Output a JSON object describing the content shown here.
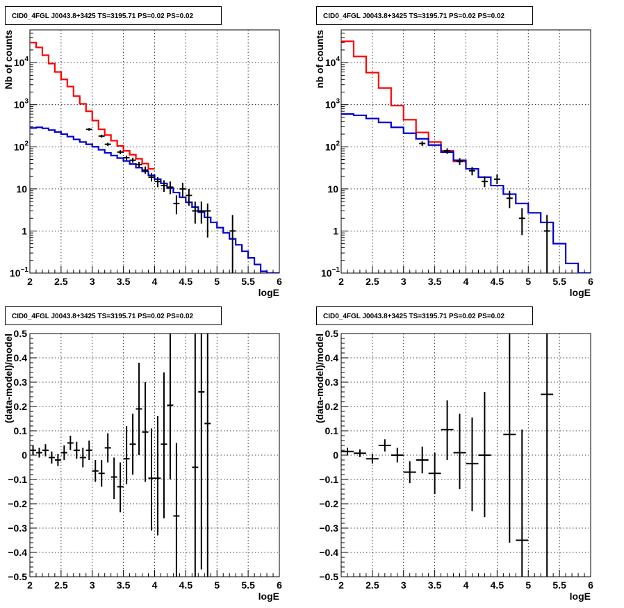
{
  "colors": {
    "data": "#000000",
    "total_model": "#ff0000",
    "source_model": "#0000cc",
    "grid": "#000000",
    "frame": "#000000"
  },
  "chart_data": [
    {
      "id": "tl",
      "type": "histogram",
      "title": "CID0_4FGL J0043.8+3425 TS=3195.71 PS=0.02 PS=0.02",
      "xlabel": "logE",
      "ylabel": "Nb of counts",
      "xlim": [
        2,
        6
      ],
      "ylim": [
        0.1,
        60000
      ],
      "ylog": true,
      "grid": true,
      "xticks": [
        {
          "v": 2,
          "label": "2"
        },
        {
          "v": 2.5,
          "label": "2.5"
        },
        {
          "v": 3,
          "label": "3"
        },
        {
          "v": 3.5,
          "label": "3.5"
        },
        {
          "v": 4,
          "label": "4"
        },
        {
          "v": 4.5,
          "label": "4.5"
        },
        {
          "v": 5,
          "label": "5"
        },
        {
          "v": 5.5,
          "label": "5.5"
        },
        {
          "v": 6,
          "label": "6"
        }
      ],
      "yticks": [
        {
          "v": 0.1,
          "label": "10",
          "sup": "−1"
        },
        {
          "v": 1,
          "label": "1"
        },
        {
          "v": 10,
          "label": "10"
        },
        {
          "v": 100,
          "label": "10",
          "sup": "2"
        },
        {
          "v": 1000,
          "label": "10",
          "sup": "3"
        },
        {
          "v": 10000,
          "label": "10",
          "sup": "4"
        }
      ],
      "series": [
        {
          "role": "total_model",
          "edges": [
            2.0,
            2.1,
            2.2,
            2.3,
            2.4,
            2.5,
            2.6,
            2.7,
            2.8,
            2.9,
            3.0,
            3.1,
            3.2,
            3.3,
            3.4,
            3.5,
            3.6,
            3.7,
            3.8,
            3.9,
            4.0
          ],
          "values": [
            30000,
            23000,
            15000,
            9500,
            6000,
            4000,
            2700,
            1600,
            1050,
            700,
            420,
            260,
            190,
            140,
            105,
            80,
            65,
            52,
            40,
            30
          ]
        },
        {
          "role": "source_model",
          "edges": [
            2.0,
            2.1,
            2.2,
            2.3,
            2.4,
            2.5,
            2.6,
            2.7,
            2.8,
            2.9,
            3.0,
            3.1,
            3.2,
            3.3,
            3.4,
            3.5,
            3.6,
            3.7,
            3.8,
            3.9,
            4.0,
            4.1,
            4.2,
            4.3,
            4.4,
            4.5,
            4.6,
            4.7,
            4.8,
            4.9,
            5.0,
            5.1,
            5.2,
            5.3,
            5.4,
            5.5,
            5.6,
            5.7,
            5.8,
            5.9,
            6.0
          ],
          "values": [
            280,
            290,
            275,
            250,
            225,
            200,
            175,
            150,
            130,
            115,
            100,
            85,
            72,
            62,
            54,
            46,
            39,
            32,
            26,
            21,
            17,
            13.5,
            10.5,
            8.2,
            6.3,
            4.8,
            3.7,
            2.8,
            2.1,
            1.6,
            1.2,
            0.9,
            0.65,
            0.47,
            0.33,
            0.23,
            0.16,
            0.11,
            0.09,
            0.09
          ]
        }
      ],
      "points": [
        {
          "x": 2.95,
          "y": 260,
          "lo": 240,
          "hi": 280
        },
        {
          "x": 3.15,
          "y": 180,
          "lo": 165,
          "hi": 195
        },
        {
          "x": 3.25,
          "y": 115,
          "lo": 105,
          "hi": 125
        },
        {
          "x": 3.45,
          "y": 75,
          "lo": 67,
          "hi": 83
        },
        {
          "x": 3.55,
          "y": 55,
          "lo": 48,
          "hi": 62
        },
        {
          "x": 3.65,
          "y": 48,
          "lo": 42,
          "hi": 55
        },
        {
          "x": 3.75,
          "y": 38,
          "lo": 32,
          "hi": 44
        },
        {
          "x": 3.85,
          "y": 28,
          "lo": 23,
          "hi": 34
        },
        {
          "x": 3.95,
          "y": 19,
          "lo": 15,
          "hi": 24
        },
        {
          "x": 4.05,
          "y": 15,
          "lo": 11,
          "hi": 19
        },
        {
          "x": 4.15,
          "y": 12,
          "lo": 8.5,
          "hi": 16
        },
        {
          "x": 4.25,
          "y": 11,
          "lo": 7.5,
          "hi": 15
        },
        {
          "x": 4.35,
          "y": 4.5,
          "lo": 2.5,
          "hi": 7
        },
        {
          "x": 4.45,
          "y": 10,
          "lo": 6.5,
          "hi": 14
        },
        {
          "x": 4.55,
          "y": 7,
          "lo": 4,
          "hi": 10
        },
        {
          "x": 4.65,
          "y": 3,
          "lo": 1.5,
          "hi": 5
        },
        {
          "x": 4.75,
          "y": 3,
          "lo": 1.5,
          "hi": 5
        },
        {
          "x": 4.85,
          "y": 3,
          "lo": 0.7,
          "hi": 4.5
        },
        {
          "x": 5.25,
          "y": 1,
          "lo": 0.1,
          "hi": 2.4
        }
      ]
    },
    {
      "id": "tr",
      "type": "histogram",
      "title": "CID0_4FGL J0043.8+3425 TS=3195.71 PS=0.02 PS=0.02",
      "xlabel": "logE",
      "ylabel": "nb of counts",
      "xlim": [
        2,
        6
      ],
      "ylim": [
        0.1,
        60000
      ],
      "ylog": true,
      "grid": true,
      "xticks": [
        {
          "v": 2,
          "label": "2"
        },
        {
          "v": 2.5,
          "label": "2.5"
        },
        {
          "v": 3,
          "label": "3"
        },
        {
          "v": 3.5,
          "label": "3.5"
        },
        {
          "v": 4,
          "label": "4"
        },
        {
          "v": 4.5,
          "label": "4.5"
        },
        {
          "v": 5,
          "label": "5"
        },
        {
          "v": 5.5,
          "label": "5.5"
        },
        {
          "v": 6,
          "label": "6"
        }
      ],
      "yticks": [
        {
          "v": 0.1,
          "label": "10",
          "sup": "−1"
        },
        {
          "v": 1,
          "label": "1"
        },
        {
          "v": 10,
          "label": "10"
        },
        {
          "v": 100,
          "label": "10",
          "sup": "2"
        },
        {
          "v": 1000,
          "label": "10",
          "sup": "3"
        },
        {
          "v": 10000,
          "label": "10",
          "sup": "4"
        }
      ],
      "series": [
        {
          "role": "total_model",
          "edges": [
            2.0,
            2.2,
            2.4,
            2.6,
            2.8,
            3.0,
            3.2,
            3.4,
            3.6,
            3.8,
            4.0
          ],
          "values": [
            32000,
            14000,
            5800,
            2500,
            950,
            440,
            220,
            130,
            80,
            45
          ]
        },
        {
          "role": "source_model",
          "edges": [
            2.0,
            2.2,
            2.4,
            2.6,
            2.8,
            3.0,
            3.2,
            3.4,
            3.6,
            3.8,
            4.0,
            4.2,
            4.4,
            4.6,
            4.8,
            5.0,
            5.2,
            5.4,
            5.6,
            5.8,
            6.0
          ],
          "values": [
            600,
            560,
            470,
            380,
            290,
            210,
            155,
            110,
            75,
            48,
            30,
            19,
            12,
            7.5,
            4.5,
            2.7,
            1.6,
            0.5,
            0.17,
            0.1
          ]
        }
      ],
      "points": [
        {
          "x": 3.3,
          "y": 120,
          "lo": 105,
          "hi": 135
        },
        {
          "x": 3.7,
          "y": 80,
          "lo": 68,
          "hi": 92
        },
        {
          "x": 3.9,
          "y": 45,
          "lo": 37,
          "hi": 54
        },
        {
          "x": 4.1,
          "y": 27,
          "lo": 21,
          "hi": 33
        },
        {
          "x": 4.3,
          "y": 15,
          "lo": 11,
          "hi": 20
        },
        {
          "x": 4.5,
          "y": 17,
          "lo": 13,
          "hi": 22
        },
        {
          "x": 4.7,
          "y": 6,
          "lo": 3.5,
          "hi": 9
        },
        {
          "x": 4.9,
          "y": 2,
          "lo": 0.8,
          "hi": 3.5
        },
        {
          "x": 5.3,
          "y": 1,
          "lo": 0.1,
          "hi": 2.4
        }
      ]
    },
    {
      "id": "bl",
      "type": "scatter",
      "title": "CID0_4FGL J0043.8+3425 TS=3195.71 PS=0.02 PS=0.02",
      "xlabel": "logE",
      "ylabel": "(data-model)/model",
      "xlim": [
        2,
        6
      ],
      "ylim": [
        -0.5,
        0.5
      ],
      "ylog": false,
      "grid": true,
      "xticks": [
        {
          "v": 2,
          "label": "2"
        },
        {
          "v": 2.5,
          "label": "2.5"
        },
        {
          "v": 3,
          "label": "3"
        },
        {
          "v": 3.5,
          "label": "3.5"
        },
        {
          "v": 4,
          "label": "4"
        },
        {
          "v": 4.5,
          "label": "4.5"
        },
        {
          "v": 5,
          "label": "5"
        },
        {
          "v": 5.5,
          "label": "5.5"
        },
        {
          "v": 6,
          "label": "6"
        }
      ],
      "yticks": [
        {
          "v": -0.5,
          "label": "−0.5"
        },
        {
          "v": -0.4,
          "label": "−0.4"
        },
        {
          "v": -0.3,
          "label": "−0.3"
        },
        {
          "v": -0.2,
          "label": "−0.2"
        },
        {
          "v": -0.1,
          "label": "−0.1"
        },
        {
          "v": 0,
          "label": "0"
        },
        {
          "v": 0.1,
          "label": "0.1"
        },
        {
          "v": 0.2,
          "label": "0.2"
        },
        {
          "v": 0.3,
          "label": "0.3"
        },
        {
          "v": 0.4,
          "label": "0.4"
        },
        {
          "v": 0.5,
          "label": "0.5"
        }
      ],
      "series": [],
      "xerr": 0.05,
      "points": [
        {
          "x": 2.05,
          "y": 0.02,
          "lo": 0.0,
          "hi": 0.04
        },
        {
          "x": 2.15,
          "y": 0.01,
          "lo": -0.01,
          "hi": 0.03
        },
        {
          "x": 2.25,
          "y": 0.02,
          "lo": -0.005,
          "hi": 0.045
        },
        {
          "x": 2.35,
          "y": -0.01,
          "lo": -0.035,
          "hi": 0.015
        },
        {
          "x": 2.45,
          "y": -0.02,
          "lo": -0.045,
          "hi": 0.005
        },
        {
          "x": 2.55,
          "y": 0.01,
          "lo": -0.02,
          "hi": 0.04
        },
        {
          "x": 2.65,
          "y": 0.05,
          "lo": 0.02,
          "hi": 0.08
        },
        {
          "x": 2.75,
          "y": 0.02,
          "lo": -0.015,
          "hi": 0.055
        },
        {
          "x": 2.85,
          "y": -0.01,
          "lo": -0.05,
          "hi": 0.03
        },
        {
          "x": 2.95,
          "y": 0.02,
          "lo": -0.02,
          "hi": 0.06
        },
        {
          "x": 3.05,
          "y": -0.065,
          "lo": -0.11,
          "hi": -0.02
        },
        {
          "x": 3.15,
          "y": -0.075,
          "lo": -0.13,
          "hi": -0.02
        },
        {
          "x": 3.25,
          "y": 0.03,
          "lo": -0.03,
          "hi": 0.09
        },
        {
          "x": 3.35,
          "y": -0.09,
          "lo": -0.18,
          "hi": -0.01
        },
        {
          "x": 3.45,
          "y": -0.13,
          "lo": -0.235,
          "hi": -0.03
        },
        {
          "x": 3.55,
          "y": -0.015,
          "lo": -0.12,
          "hi": 0.12
        },
        {
          "x": 3.65,
          "y": 0.045,
          "lo": -0.08,
          "hi": 0.17
        },
        {
          "x": 3.75,
          "y": 0.19,
          "lo": 0.0,
          "hi": 0.38
        },
        {
          "x": 3.85,
          "y": 0.095,
          "lo": -0.11,
          "hi": 0.3
        },
        {
          "x": 3.95,
          "y": -0.095,
          "lo": -0.31,
          "hi": 0.11
        },
        {
          "x": 4.05,
          "y": -0.095,
          "lo": -0.33,
          "hi": 0.16
        },
        {
          "x": 4.15,
          "y": 0.045,
          "lo": -0.26,
          "hi": 0.34
        },
        {
          "x": 4.25,
          "y": 0.205,
          "lo": -0.1,
          "hi": 0.5
        },
        {
          "x": 4.35,
          "y": -0.25,
          "lo": -0.5,
          "hi": 0.05
        },
        {
          "x": 4.65,
          "y": -0.05,
          "lo": -0.5,
          "hi": 0.5
        },
        {
          "x": 4.75,
          "y": 0.26,
          "lo": -0.47,
          "hi": 0.5
        },
        {
          "x": 4.85,
          "y": 0.13,
          "lo": -0.5,
          "hi": 0.5
        }
      ]
    },
    {
      "id": "br",
      "type": "scatter",
      "title": "CID0_4FGL J0043.8+3425 TS=3195.71 PS=0.02 PS=0.02",
      "xlabel": "logE",
      "ylabel": "(data-model)/model",
      "xlim": [
        2,
        6
      ],
      "ylim": [
        -0.5,
        0.5
      ],
      "ylog": false,
      "grid": true,
      "xticks": [
        {
          "v": 2,
          "label": "2"
        },
        {
          "v": 2.5,
          "label": "2.5"
        },
        {
          "v": 3,
          "label": "3"
        },
        {
          "v": 3.5,
          "label": "3.5"
        },
        {
          "v": 4,
          "label": "4"
        },
        {
          "v": 4.5,
          "label": "4.5"
        },
        {
          "v": 5,
          "label": "5"
        },
        {
          "v": 5.5,
          "label": "5.5"
        },
        {
          "v": 6,
          "label": "6"
        }
      ],
      "yticks": [
        {
          "v": -0.5,
          "label": "−0.5"
        },
        {
          "v": -0.4,
          "label": "−0.4"
        },
        {
          "v": -0.3,
          "label": "−0.3"
        },
        {
          "v": -0.2,
          "label": "−0.2"
        },
        {
          "v": -0.1,
          "label": "−0.1"
        },
        {
          "v": 0,
          "label": "0"
        },
        {
          "v": 0.1,
          "label": "0.1"
        },
        {
          "v": 0.2,
          "label": "0.2"
        },
        {
          "v": 0.3,
          "label": "0.3"
        },
        {
          "v": 0.4,
          "label": "0.4"
        },
        {
          "v": 0.5,
          "label": "0.5"
        }
      ],
      "series": [],
      "xerr": 0.1,
      "points": [
        {
          "x": 2.1,
          "y": 0.015,
          "lo": 0.0,
          "hi": 0.03
        },
        {
          "x": 2.3,
          "y": 0.008,
          "lo": -0.008,
          "hi": 0.024
        },
        {
          "x": 2.5,
          "y": -0.015,
          "lo": -0.035,
          "hi": 0.005
        },
        {
          "x": 2.7,
          "y": 0.04,
          "lo": 0.015,
          "hi": 0.065
        },
        {
          "x": 2.9,
          "y": 0.0,
          "lo": -0.03,
          "hi": 0.03
        },
        {
          "x": 3.1,
          "y": -0.07,
          "lo": -0.115,
          "hi": -0.025
        },
        {
          "x": 3.3,
          "y": -0.02,
          "lo": -0.075,
          "hi": 0.035
        },
        {
          "x": 3.5,
          "y": -0.075,
          "lo": -0.16,
          "hi": 0.01
        },
        {
          "x": 3.7,
          "y": 0.105,
          "lo": -0.02,
          "hi": 0.225
        },
        {
          "x": 3.9,
          "y": 0.01,
          "lo": -0.14,
          "hi": 0.17
        },
        {
          "x": 4.1,
          "y": -0.035,
          "lo": -0.23,
          "hi": 0.155
        },
        {
          "x": 4.3,
          "y": 0.0,
          "lo": -0.255,
          "hi": 0.26
        },
        {
          "x": 4.7,
          "y": 0.085,
          "lo": -0.36,
          "hi": 0.5
        },
        {
          "x": 4.9,
          "y": -0.35,
          "lo": -0.5,
          "hi": 0.105
        },
        {
          "x": 5.3,
          "y": 0.25,
          "lo": -0.5,
          "hi": 0.5
        }
      ]
    }
  ]
}
